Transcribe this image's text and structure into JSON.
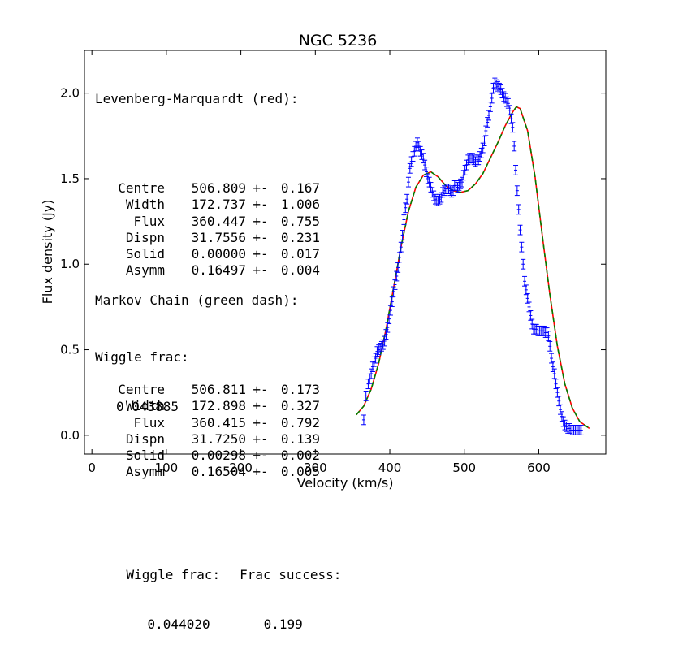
{
  "chart_data": {
    "type": "scatter",
    "title": "NGC 5236",
    "xlabel": "Velocity (km/s)",
    "ylabel": "Flux density (Jy)",
    "xlim": [
      -10,
      690
    ],
    "ylim": [
      -0.11,
      2.25
    ],
    "xticks": [
      0,
      100,
      200,
      300,
      400,
      500,
      600
    ],
    "yticks": [
      0.0,
      0.5,
      1.0,
      1.5,
      2.0
    ],
    "xtick_labels": [
      "0",
      "100",
      "200",
      "300",
      "400",
      "500",
      "600"
    ],
    "ytick_labels": [
      "0.0",
      "0.5",
      "1.0",
      "1.5",
      "2.0"
    ],
    "data_points": {
      "name": "data",
      "color": "#0000ff",
      "x": [
        365,
        368,
        371,
        373,
        375,
        377,
        379,
        381,
        383,
        385,
        387,
        389,
        391,
        393,
        395,
        397,
        399,
        401,
        403,
        405,
        407,
        409,
        411,
        413,
        415,
        417,
        419,
        421,
        423,
        425,
        427,
        429,
        431,
        433,
        435,
        437,
        439,
        441,
        443,
        445,
        447,
        449,
        451,
        453,
        455,
        457,
        459,
        461,
        463,
        465,
        467,
        469,
        471,
        473,
        475,
        477,
        479,
        481,
        483,
        485,
        487,
        489,
        491,
        493,
        495,
        497,
        499,
        501,
        503,
        505,
        507,
        509,
        511,
        513,
        515,
        517,
        519,
        521,
        523,
        525,
        527,
        529,
        531,
        533,
        535,
        537,
        539,
        541,
        543,
        545,
        547,
        549,
        551,
        553,
        555,
        557,
        559,
        561,
        563,
        565,
        567,
        569,
        571,
        573,
        575,
        577,
        579,
        581,
        583,
        585,
        587,
        589,
        591,
        593,
        595,
        597,
        599,
        601,
        603,
        605,
        607,
        609,
        611,
        613,
        615,
        617,
        619,
        621,
        623,
        625,
        627,
        629,
        631,
        633,
        635,
        637,
        639,
        641,
        643,
        645,
        647,
        649,
        651,
        653,
        655,
        657
      ],
      "y": [
        0.09,
        0.23,
        0.3,
        0.33,
        0.36,
        0.4,
        0.43,
        0.45,
        0.49,
        0.5,
        0.51,
        0.52,
        0.53,
        0.55,
        0.59,
        0.63,
        0.68,
        0.73,
        0.78,
        0.84,
        0.88,
        0.93,
        0.98,
        1.04,
        1.1,
        1.17,
        1.26,
        1.33,
        1.38,
        1.48,
        1.56,
        1.6,
        1.63,
        1.66,
        1.69,
        1.71,
        1.69,
        1.66,
        1.64,
        1.62,
        1.58,
        1.54,
        1.5,
        1.48,
        1.45,
        1.42,
        1.4,
        1.38,
        1.37,
        1.37,
        1.38,
        1.39,
        1.42,
        1.43,
        1.44,
        1.44,
        1.44,
        1.43,
        1.42,
        1.43,
        1.46,
        1.46,
        1.45,
        1.46,
        1.47,
        1.48,
        1.52,
        1.55,
        1.58,
        1.61,
        1.62,
        1.62,
        1.62,
        1.61,
        1.6,
        1.61,
        1.61,
        1.63,
        1.65,
        1.68,
        1.72,
        1.78,
        1.83,
        1.87,
        1.92,
        1.97,
        2.03,
        2.06,
        2.05,
        2.04,
        2.03,
        2.02,
        2.0,
        1.98,
        1.97,
        1.95,
        1.94,
        1.9,
        1.85,
        1.8,
        1.69,
        1.55,
        1.43,
        1.32,
        1.2,
        1.1,
        1.0,
        0.9,
        0.85,
        0.8,
        0.75,
        0.7,
        0.65,
        0.62,
        0.62,
        0.62,
        0.61,
        0.61,
        0.61,
        0.61,
        0.61,
        0.6,
        0.6,
        0.58,
        0.52,
        0.45,
        0.4,
        0.36,
        0.3,
        0.25,
        0.2,
        0.15,
        0.11,
        0.08,
        0.06,
        0.05,
        0.04,
        0.04,
        0.03,
        0.03,
        0.03,
        0.03,
        0.03,
        0.03,
        0.03,
        0.03
      ],
      "yerr": 0.028
    },
    "fit_levenberg_marquardt": {
      "name": "Levenberg-Marquardt fit",
      "color": "#ff0000",
      "style": "solid",
      "x": [
        355,
        365,
        375,
        385,
        395,
        405,
        415,
        425,
        435,
        445,
        455,
        465,
        475,
        485,
        495,
        505,
        515,
        525,
        535,
        545,
        555,
        565,
        570,
        575,
        585,
        595,
        605,
        615,
        625,
        635,
        645,
        655,
        668
      ],
      "y": [
        0.12,
        0.17,
        0.27,
        0.42,
        0.62,
        0.86,
        1.1,
        1.31,
        1.45,
        1.52,
        1.54,
        1.51,
        1.46,
        1.43,
        1.42,
        1.43,
        1.47,
        1.53,
        1.62,
        1.71,
        1.81,
        1.89,
        1.92,
        1.91,
        1.78,
        1.51,
        1.16,
        0.82,
        0.52,
        0.3,
        0.16,
        0.08,
        0.04
      ]
    },
    "fit_markov_chain": {
      "name": "Markov Chain fit",
      "color": "#008000",
      "style": "dashed",
      "x": [
        355,
        365,
        375,
        385,
        395,
        405,
        415,
        425,
        435,
        445,
        455,
        465,
        475,
        485,
        495,
        505,
        515,
        525,
        535,
        545,
        555,
        565,
        570,
        575,
        585,
        595,
        605,
        615,
        625,
        635,
        645,
        655,
        668
      ],
      "y": [
        0.12,
        0.17,
        0.27,
        0.42,
        0.62,
        0.86,
        1.1,
        1.31,
        1.45,
        1.52,
        1.54,
        1.51,
        1.46,
        1.43,
        1.42,
        1.43,
        1.47,
        1.53,
        1.62,
        1.71,
        1.81,
        1.89,
        1.92,
        1.91,
        1.78,
        1.51,
        1.16,
        0.82,
        0.52,
        0.3,
        0.16,
        0.08,
        0.04
      ]
    }
  },
  "annotations": {
    "lm": {
      "header": "Levenberg-Marquardt (red):",
      "rows": [
        {
          "label": "Centre",
          "value": "506.809",
          "pm": "+-",
          "err": "0.167"
        },
        {
          "label": "Width",
          "value": "172.737",
          "pm": "+-",
          "err": "1.006"
        },
        {
          "label": "Flux",
          "value": "360.447",
          "pm": "+-",
          "err": "0.755"
        },
        {
          "label": "Dispn",
          "value": "31.7556",
          "pm": "+-",
          "err": "0.231"
        },
        {
          "label": "Solid",
          "value": "0.00000",
          "pm": "+-",
          "err": "0.017"
        },
        {
          "label": "Asymm",
          "value": "0.16497",
          "pm": "+-",
          "err": "0.004"
        }
      ],
      "wiggle_label": "Wiggle frac:",
      "wiggle_value": "0.043885"
    },
    "mc": {
      "header": "Markov Chain (green dash):",
      "rows": [
        {
          "label": "Centre",
          "value": "506.811",
          "pm": "+-",
          "err": "0.173"
        },
        {
          "label": "Width",
          "value": "172.898",
          "pm": "+-",
          "err": "0.327"
        },
        {
          "label": "Flux",
          "value": "360.415",
          "pm": "+-",
          "err": "0.792"
        },
        {
          "label": "Dispn",
          "value": "31.7250",
          "pm": "+-",
          "err": "0.139"
        },
        {
          "label": "Solid",
          "value": "0.00298",
          "pm": "+-",
          "err": "0.002"
        },
        {
          "label": "Asymm",
          "value": "0.16504",
          "pm": "+-",
          "err": "0.005"
        }
      ],
      "wiggle_label": "Wiggle frac:",
      "wiggle_value": "0.044020",
      "success_label": "Frac success:",
      "success_value": "0.199"
    }
  }
}
